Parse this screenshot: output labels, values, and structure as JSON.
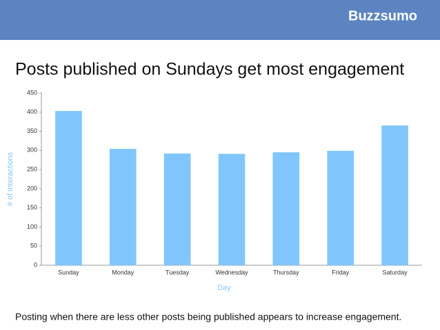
{
  "header": {
    "logo": "Buzzsumo"
  },
  "title": "Posts published on Sundays get most engagement",
  "footer": "Posting when there are less other posts being published appears to increase engagement.",
  "chart_data": {
    "type": "bar",
    "x_label": "Day",
    "y_label": "# of Interactions",
    "categories": [
      "Sunday",
      "Monday",
      "Tuesday",
      "Wednesday",
      "Thursday",
      "Friday",
      "Saturday"
    ],
    "values": [
      403,
      304,
      292,
      291,
      295,
      299,
      365
    ],
    "color": "#80c6fc",
    "ylim": [
      0,
      450
    ],
    "yticks": [
      0,
      50,
      100,
      150,
      200,
      250,
      300,
      350,
      400,
      450
    ],
    "grid": false
  }
}
